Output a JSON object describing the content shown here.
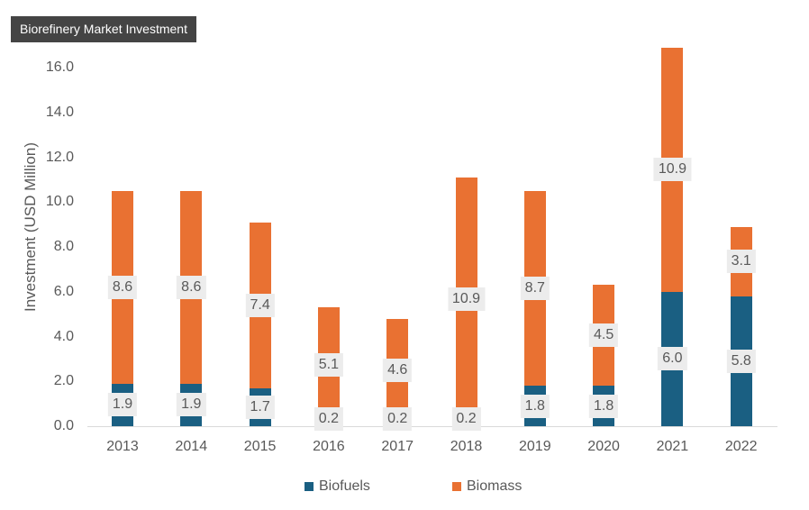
{
  "title": "Biorefinery Market Investment",
  "colors": {
    "biofuels": "#1a5f82",
    "biomass": "#e97132"
  },
  "legend": {
    "biofuels": "Biofuels",
    "biomass": "Biomass"
  },
  "chart_data": {
    "type": "bar",
    "stacked": true,
    "title": "Biorefinery Market Investment",
    "xlabel": "",
    "ylabel": "Investment (USD Million)",
    "ylim": [
      0,
      16
    ],
    "yticks": [
      "0.0",
      "2.0",
      "4.0",
      "6.0",
      "8.0",
      "10.0",
      "12.0",
      "14.0",
      "16.0"
    ],
    "categories": [
      "2013",
      "2014",
      "2015",
      "2016",
      "2017",
      "2018",
      "2019",
      "2020",
      "2021",
      "2022"
    ],
    "series": [
      {
        "name": "Biofuels",
        "values": [
          1.9,
          1.9,
          1.7,
          0.2,
          0.2,
          0.2,
          1.8,
          1.8,
          6.0,
          5.8
        ],
        "labels": [
          "1.9",
          "1.9",
          "1.7",
          "0.2",
          "0.2",
          "0.2",
          "1.8",
          "1.8",
          "6.0",
          "5.8"
        ]
      },
      {
        "name": "Biomass",
        "values": [
          8.6,
          8.6,
          7.4,
          5.1,
          4.6,
          10.9,
          8.7,
          4.5,
          10.9,
          3.1
        ],
        "labels": [
          "8.6",
          "8.6",
          "7.4",
          "5.1",
          "4.6",
          "10.9",
          "8.7",
          "4.5",
          "10.9",
          "3.1"
        ]
      }
    ],
    "grid": false,
    "legend_position": "bottom"
  }
}
